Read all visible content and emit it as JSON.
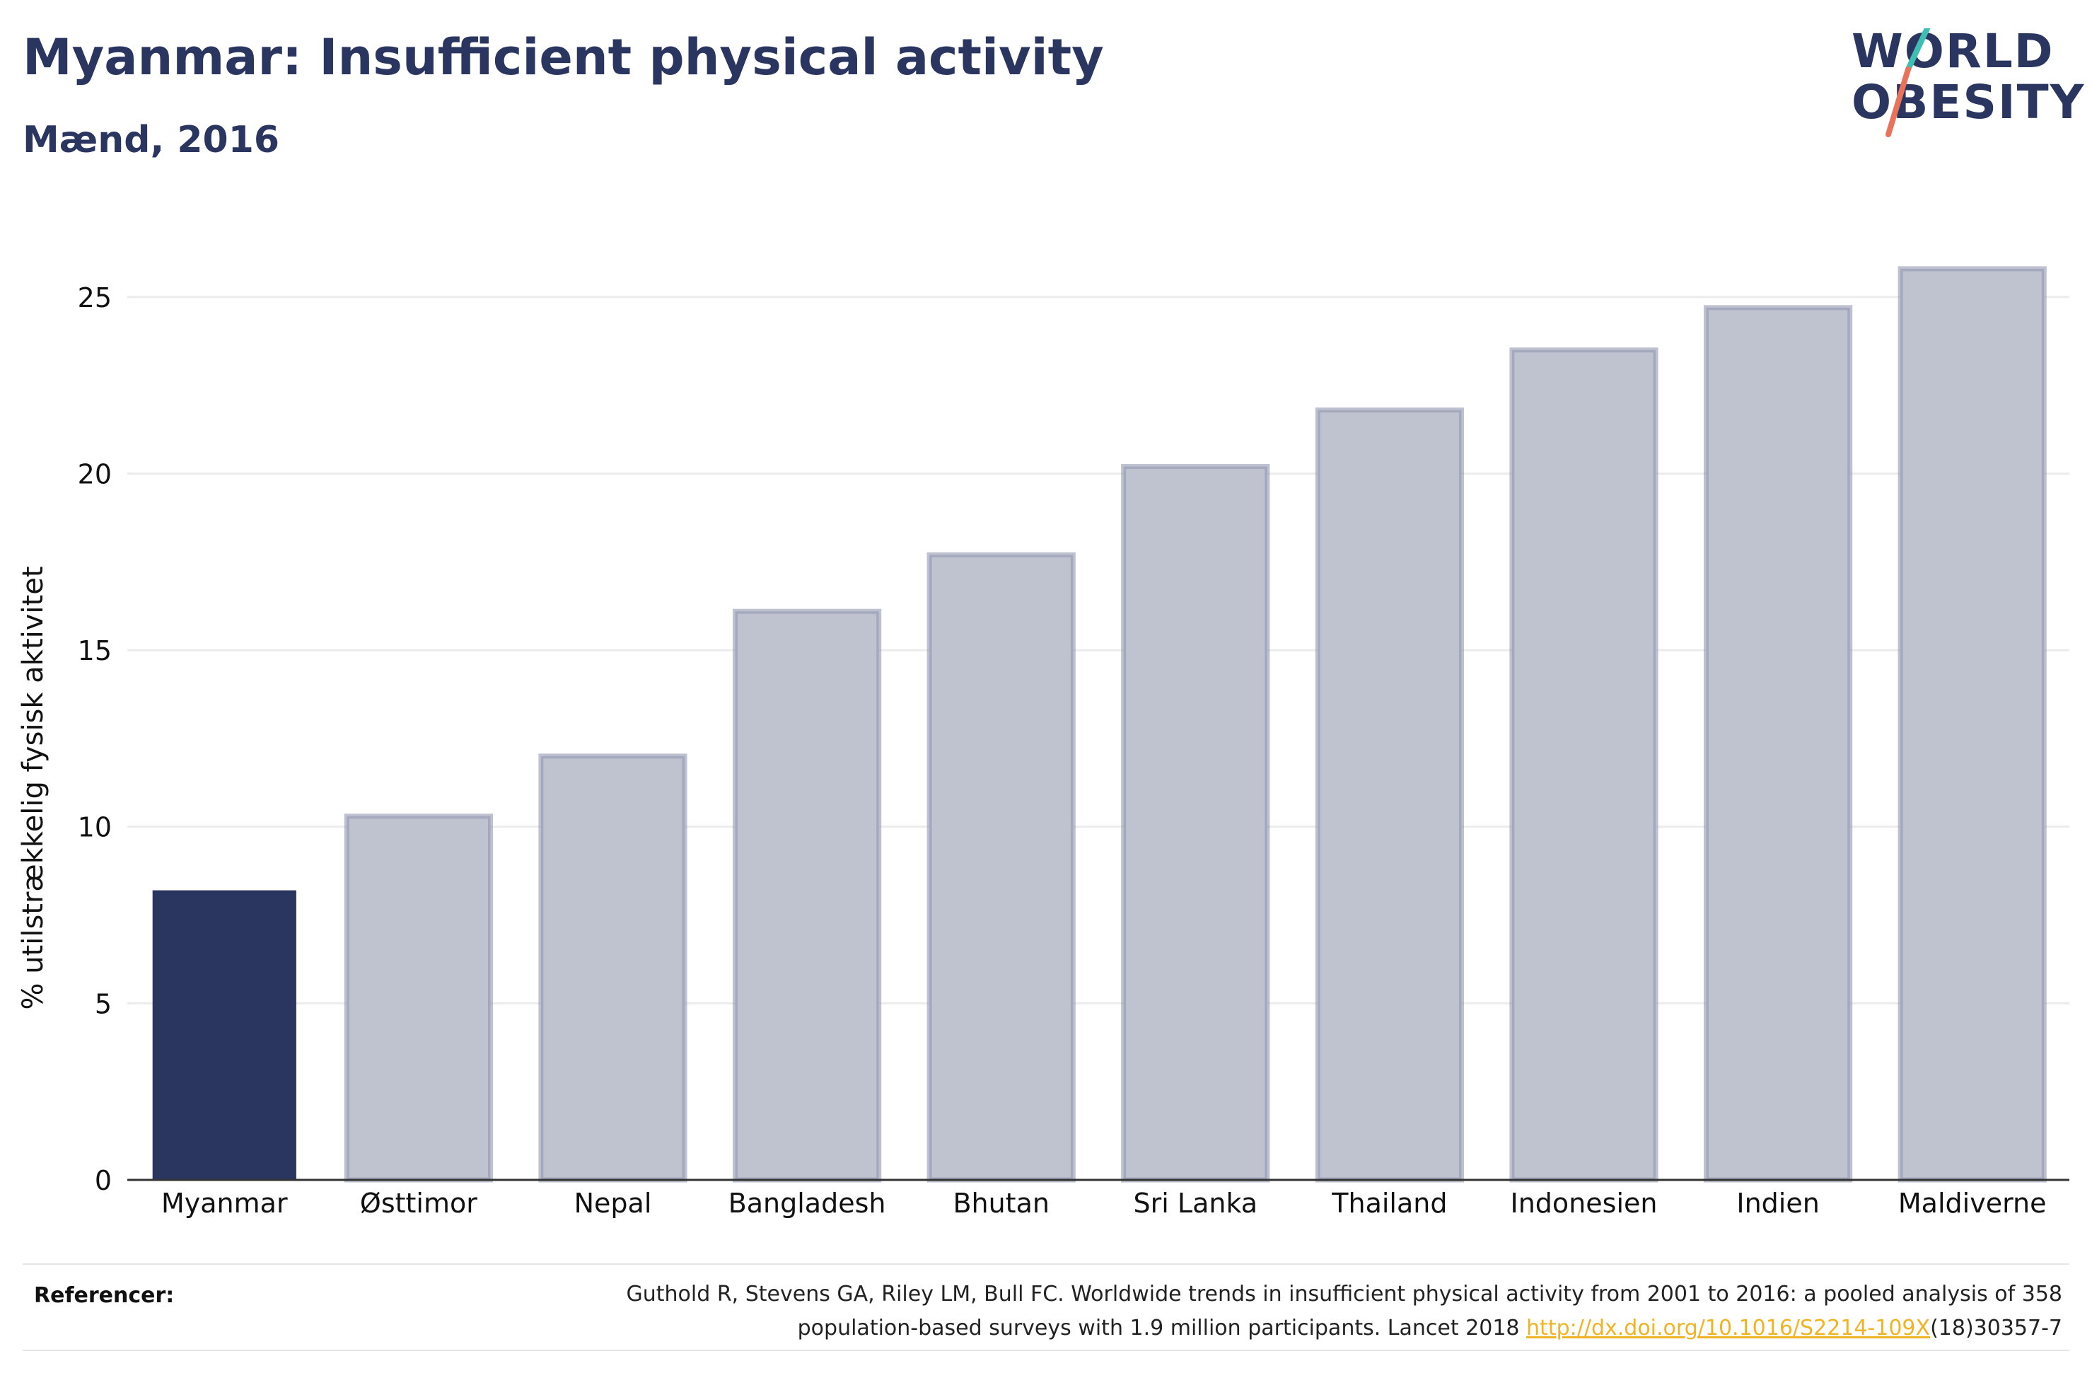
{
  "header": {
    "title": "Myanmar: Insufficient physical activity",
    "subtitle": "Mænd, 2016"
  },
  "logo": {
    "line1": "WORLD",
    "line2": "OBESITY"
  },
  "chart_data": {
    "type": "bar",
    "categories": [
      "Myanmar",
      "Østtimor",
      "Nepal",
      "Bangladesh",
      "Bhutan",
      "Sri Lanka",
      "Thailand",
      "Indonesien",
      "Indien",
      "Maldiverne"
    ],
    "values": [
      8.2,
      10.3,
      12.0,
      16.1,
      17.7,
      20.2,
      21.8,
      23.5,
      24.7,
      25.8
    ],
    "highlight": "Myanmar",
    "ylabel": "% utilstrækkelig fysisk aktivitet",
    "xlabel": "",
    "ylim": [
      0,
      27
    ],
    "yticks": [
      0,
      5,
      10,
      15,
      20,
      25
    ],
    "grid": true,
    "colors": {
      "highlight": "#2a3560",
      "bar": "#bfc2cf",
      "bar_stroke": "#9298b0",
      "grid": "#ececec",
      "axis": "#333333"
    }
  },
  "footer": {
    "ref_label": "Referencer:",
    "ref_line1": "Guthold R, Stevens GA, Riley LM, Bull FC. Worldwide trends in insufficient physical activity from 2001 to 2016: a pooled analysis of 358",
    "ref_line2_pre": "population-based surveys with 1.9 million participants. Lancet 2018 ",
    "ref_link": "http://dx.doi.org/10.1016/S2214-109X",
    "ref_line2_post": "(18)30357-7"
  }
}
